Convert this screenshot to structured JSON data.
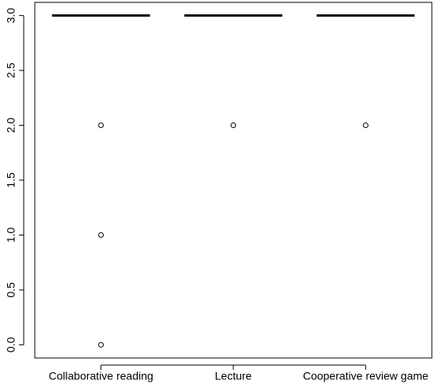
{
  "chart_data": {
    "type": "box",
    "categories": [
      "Collaborative reading",
      "Lecture",
      "Cooperative review game"
    ],
    "series": [
      {
        "whisker_low": 3,
        "q1": 3,
        "median": 3,
        "q3": 3,
        "whisker_high": 3,
        "outliers": [
          2,
          1,
          0
        ]
      },
      {
        "whisker_low": 3,
        "q1": 3,
        "median": 3,
        "q3": 3,
        "whisker_high": 3,
        "outliers": [
          2
        ]
      },
      {
        "whisker_low": 3,
        "q1": 3,
        "median": 3,
        "q3": 3,
        "whisker_high": 3,
        "outliers": [
          2
        ]
      }
    ],
    "color": "#000000",
    "ylim": [
      -0.12,
      3.12
    ],
    "yticks": [
      {
        "value": 0,
        "label": "0.0"
      },
      {
        "value": 0.5,
        "label": "0.5"
      },
      {
        "value": 1,
        "label": "1.0"
      },
      {
        "value": 1.5,
        "label": "1.5"
      },
      {
        "value": 2,
        "label": "2.0"
      },
      {
        "value": 2.5,
        "label": "2.5"
      },
      {
        "value": 3,
        "label": "3.0"
      }
    ]
  }
}
